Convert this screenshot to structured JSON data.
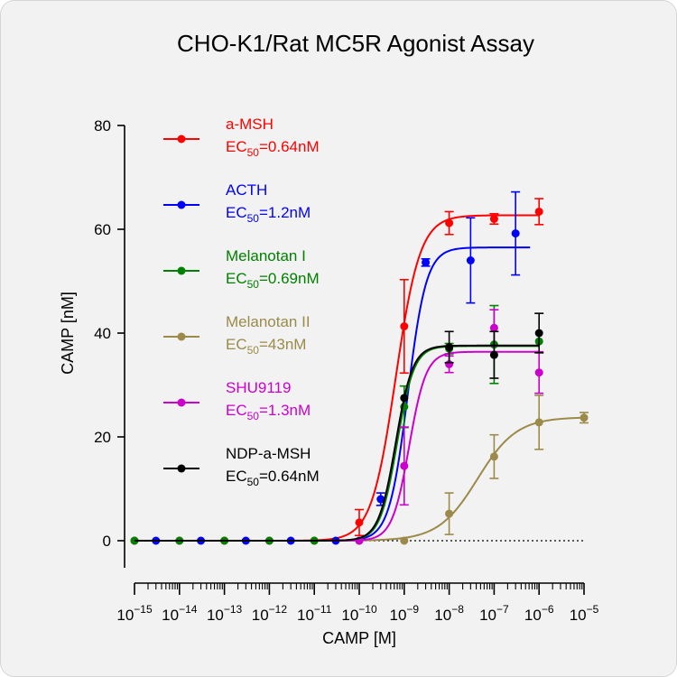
{
  "chart_data": {
    "type": "scatter",
    "title": "CHO-K1/Rat MC5R Agonist Assay",
    "xlabel": "CAMP [M]",
    "ylabel": "CAMP [nM]",
    "x_scale": "log",
    "xlim_exponent": [
      -15,
      -5
    ],
    "ylim": [
      0,
      80
    ],
    "y_ticks": [
      0,
      20,
      40,
      60,
      80
    ],
    "x_tick_exponents": [
      -15,
      -14,
      -13,
      -12,
      -11,
      -10,
      -9,
      -8,
      -7,
      -6,
      -5
    ],
    "x_tick_base": "10",
    "baseline": 0,
    "legend_position": "top-left",
    "fit": "sigmoidal dose-response",
    "series": [
      {
        "name": "a-MSH",
        "ec50_label": "EC",
        "ec50_sub": "50",
        "ec50_value": "=0.64nM",
        "color": "#ff0000",
        "bottom": 0,
        "top": 62.7,
        "log_ec50": -9.19,
        "hill": 1.6,
        "points": [
          [
            1e-15,
            0
          ],
          [
            1e-14,
            0
          ],
          [
            1e-13,
            0
          ],
          [
            1e-12,
            0
          ],
          [
            1e-11,
            0
          ],
          [
            1e-10,
            3.5
          ],
          [
            1e-09,
            41.3
          ],
          [
            1e-08,
            61.2
          ],
          [
            1e-07,
            62.0
          ],
          [
            1e-06,
            63.4
          ]
        ],
        "errors": [
          0,
          0,
          0,
          0,
          0,
          2.5,
          9.0,
          2.2,
          1.0,
          2.5
        ],
        "fit_end_exponent": -6
      },
      {
        "name": "ACTH",
        "ec50_label": "EC",
        "ec50_sub": "50",
        "ec50_value": "=1.2nM",
        "color": "#0000ff",
        "bottom": 0,
        "top": 56.5,
        "log_ec50": -8.92,
        "hill": 2.1,
        "points": [
          [
            3e-15,
            0
          ],
          [
            3e-14,
            0
          ],
          [
            3e-13,
            0
          ],
          [
            3e-12,
            0
          ],
          [
            3e-11,
            0
          ],
          [
            3e-10,
            8.0
          ],
          [
            3e-09,
            53.6
          ],
          [
            3e-08,
            54.0
          ],
          [
            3e-07,
            59.2
          ]
        ],
        "errors": [
          0,
          0,
          0,
          0,
          0,
          1.2,
          0.7,
          8.2,
          8.0
        ],
        "fit_end_exponent": -6.2
      },
      {
        "name": "Melanotan I",
        "ec50_label": "EC",
        "ec50_sub": "50",
        "ec50_value": "=0.69nM",
        "color": "#008000",
        "bottom": 0,
        "top": 37.5,
        "log_ec50": -9.16,
        "hill": 2.3,
        "points": [
          [
            1e-15,
            0
          ],
          [
            1e-14,
            0
          ],
          [
            1e-13,
            0
          ],
          [
            1e-12,
            0
          ],
          [
            1e-11,
            0
          ],
          [
            1e-10,
            0
          ],
          [
            1e-09,
            25.8
          ],
          [
            1e-08,
            37.0
          ],
          [
            1e-07,
            37.8
          ],
          [
            1e-06,
            38.4
          ]
        ],
        "errors": [
          0,
          0,
          0,
          0,
          0,
          0,
          4.0,
          1.0,
          7.5,
          0
        ],
        "fit_end_exponent": -6
      },
      {
        "name": "Melanotan II",
        "ec50_label": "EC",
        "ec50_sub": "50",
        "ec50_value": "=43nM",
        "color": "#9b8a4a",
        "bottom": 0,
        "top": 23.8,
        "log_ec50": -7.37,
        "hill": 1.0,
        "points": [
          [
            1e-09,
            0
          ],
          [
            1e-08,
            5.2
          ],
          [
            1e-07,
            16.2
          ],
          [
            1e-06,
            22.8
          ],
          [
            1e-05,
            23.7
          ]
        ],
        "errors": [
          0,
          4.0,
          4.2,
          5.2,
          1.0
        ],
        "fit_end_exponent": -5
      },
      {
        "name": "SHU9119",
        "ec50_label": "EC",
        "ec50_sub": "50",
        "ec50_value": "=1.3nM",
        "color": "#cc00cc",
        "bottom": 0,
        "top": 36.4,
        "log_ec50": -8.89,
        "hill": 2.3,
        "points": [
          [
            1e-10,
            0
          ],
          [
            1e-09,
            14.4
          ],
          [
            1e-08,
            34.0
          ],
          [
            1e-07,
            41.0
          ],
          [
            1e-06,
            32.4
          ]
        ],
        "errors": [
          0,
          7.5,
          1.6,
          3.5,
          4.0
        ],
        "fit_end_exponent": -6
      },
      {
        "name": "NDP-a-MSH",
        "ec50_label": "EC",
        "ec50_sub": "50",
        "ec50_value": "=0.64nM",
        "color": "#000000",
        "bottom": 0,
        "top": 37.6,
        "log_ec50": -9.19,
        "hill": 2.3,
        "points": [
          [
            1e-09,
            27.5
          ],
          [
            1e-08,
            37.3
          ],
          [
            1e-07,
            35.8
          ],
          [
            1e-06,
            40.0
          ]
        ],
        "errors": [
          0,
          3.0,
          4.5,
          3.8
        ],
        "fit_end_exponent": -6
      }
    ]
  }
}
